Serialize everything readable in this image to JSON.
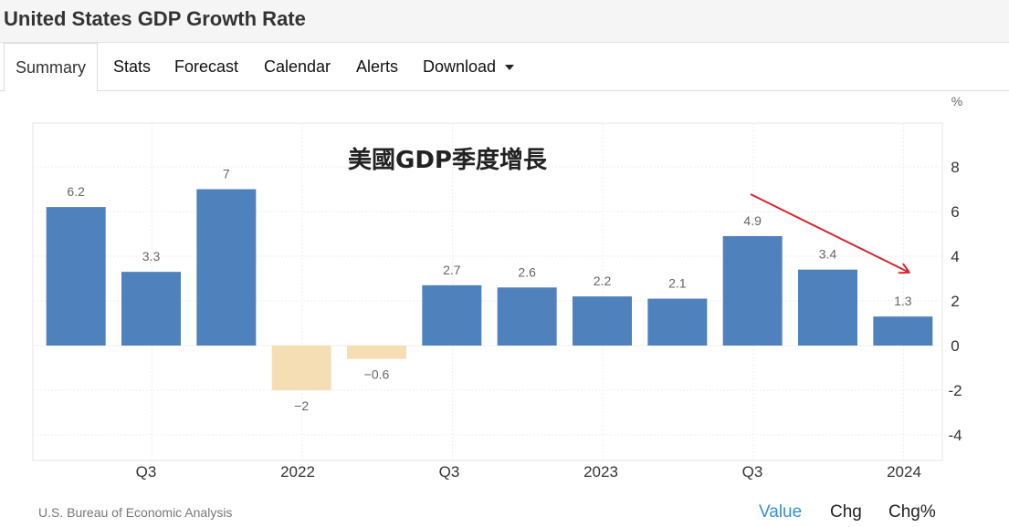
{
  "page": {
    "title": "United States GDP Growth Rate"
  },
  "tabs": [
    {
      "label": "Summary",
      "active": true
    },
    {
      "label": "Stats"
    },
    {
      "label": "Forecast"
    },
    {
      "label": "Calendar"
    },
    {
      "label": "Alerts"
    },
    {
      "label": "Download",
      "has_dropdown": true
    }
  ],
  "footer": {
    "source": "U.S. Bureau of Economic Analysis",
    "options": [
      {
        "label": "Value",
        "active": true
      },
      {
        "label": "Chg"
      },
      {
        "label": "Chg%"
      }
    ]
  },
  "chart_data": {
    "type": "bar",
    "title": "美國GDP季度增長",
    "y_unit": "%",
    "ylim": [
      -4,
      8
    ],
    "yticks": [
      8,
      6,
      4,
      2,
      0,
      -2,
      -4
    ],
    "values": [
      6.2,
      3.3,
      7,
      -2,
      -0.6,
      2.7,
      2.6,
      2.2,
      2.1,
      4.9,
      3.4,
      1.3
    ],
    "data_labels": [
      "6.2",
      "3.3",
      "7",
      "−2",
      "−0.6",
      "2.7",
      "2.6",
      "2.2",
      "2.1",
      "4.9",
      "3.4",
      "1.3"
    ],
    "x_tick_labels": [
      "Q3",
      "2022",
      "Q3",
      "2023",
      "Q3",
      "2024"
    ],
    "colors": {
      "positive": "#4f81bd",
      "negative": "#f5deb3",
      "arrow": "#d9262b"
    },
    "annotation": "red arrow pointing down toward the latest bars",
    "grid": true
  }
}
